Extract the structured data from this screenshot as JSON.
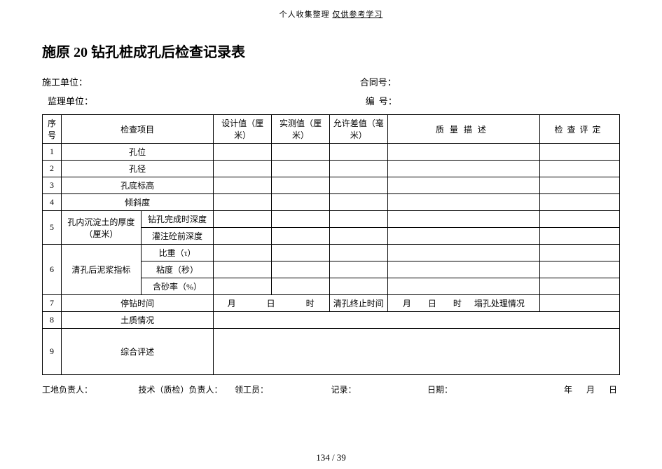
{
  "header": {
    "prefix": "个人收集整理",
    "suffix": "仅供参考学习"
  },
  "title": "施原 20  钻孔桩成孔后检查记录表",
  "meta": {
    "construct_unit_label": "施工单位：",
    "contract_no_label": "合同号：",
    "supervise_unit_label": "监理单位：",
    "serial_no_label_a": "编",
    "serial_no_label_b": "号："
  },
  "table": {
    "headers": {
      "seq": "序号",
      "item": "检查项目",
      "design": "设计值（厘米）",
      "actual": "实测值（厘米）",
      "tolerance": "允许差值（毫米）",
      "quality": "质量描述",
      "eval": "检查评定"
    },
    "rows_simple": [
      {
        "n": "1",
        "name": "孔位"
      },
      {
        "n": "2",
        "name": "孔径"
      },
      {
        "n": "3",
        "name": "孔底标高"
      },
      {
        "n": "4",
        "name": "倾斜度"
      }
    ],
    "row5": {
      "n": "5",
      "name": "孔内沉淀土的厚度（厘米）",
      "sub1": "钻孔完成时深度",
      "sub2": "灌注砼前深度"
    },
    "row6": {
      "n": "6",
      "name": "清孔后泥浆指标",
      "sub1": "比重（τ）",
      "sub2": "粘度（秒）",
      "sub3": "含砂率（%）"
    },
    "row7": {
      "n": "7",
      "name": "停钻时间",
      "date1": "月　　　日　　　时",
      "mid_label": "清孔终止时间",
      "date2": "月　　日　　时",
      "tail_label": "塌孔处理情况"
    },
    "row8": {
      "n": "8",
      "name": "土质情况"
    },
    "row9": {
      "n": "9",
      "name": "综合评述"
    }
  },
  "footer": {
    "site_lead": "工地负责人：",
    "tech_lead": "技术（质检）负责人：",
    "foreman": "领工员：",
    "recorder": "记录：",
    "date_label": "日期：",
    "date_value": "年　月　日"
  },
  "page_number": "134 / 39"
}
